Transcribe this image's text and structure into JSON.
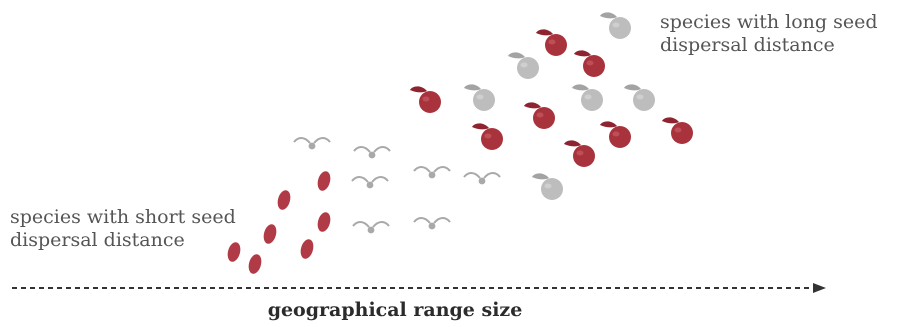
{
  "labels": {
    "long_dispersal": [
      "species with long seed",
      "dispersal distance"
    ],
    "short_dispersal": [
      "species with short seed",
      "dispersal distance"
    ],
    "axis": "geographical range size"
  },
  "colors": {
    "red_seed": "#a8333d",
    "red_seed_light": "#c9434c",
    "grey_seed": "#bdbdbd",
    "wind_seed": "#a9a9a9",
    "text": "#555555",
    "axis": "#333333"
  },
  "icons": {
    "large_seed": "fleshy-fruit-icon",
    "winged_seed": "winged-seed-icon",
    "small_seed": "oval-seed-icon"
  }
}
